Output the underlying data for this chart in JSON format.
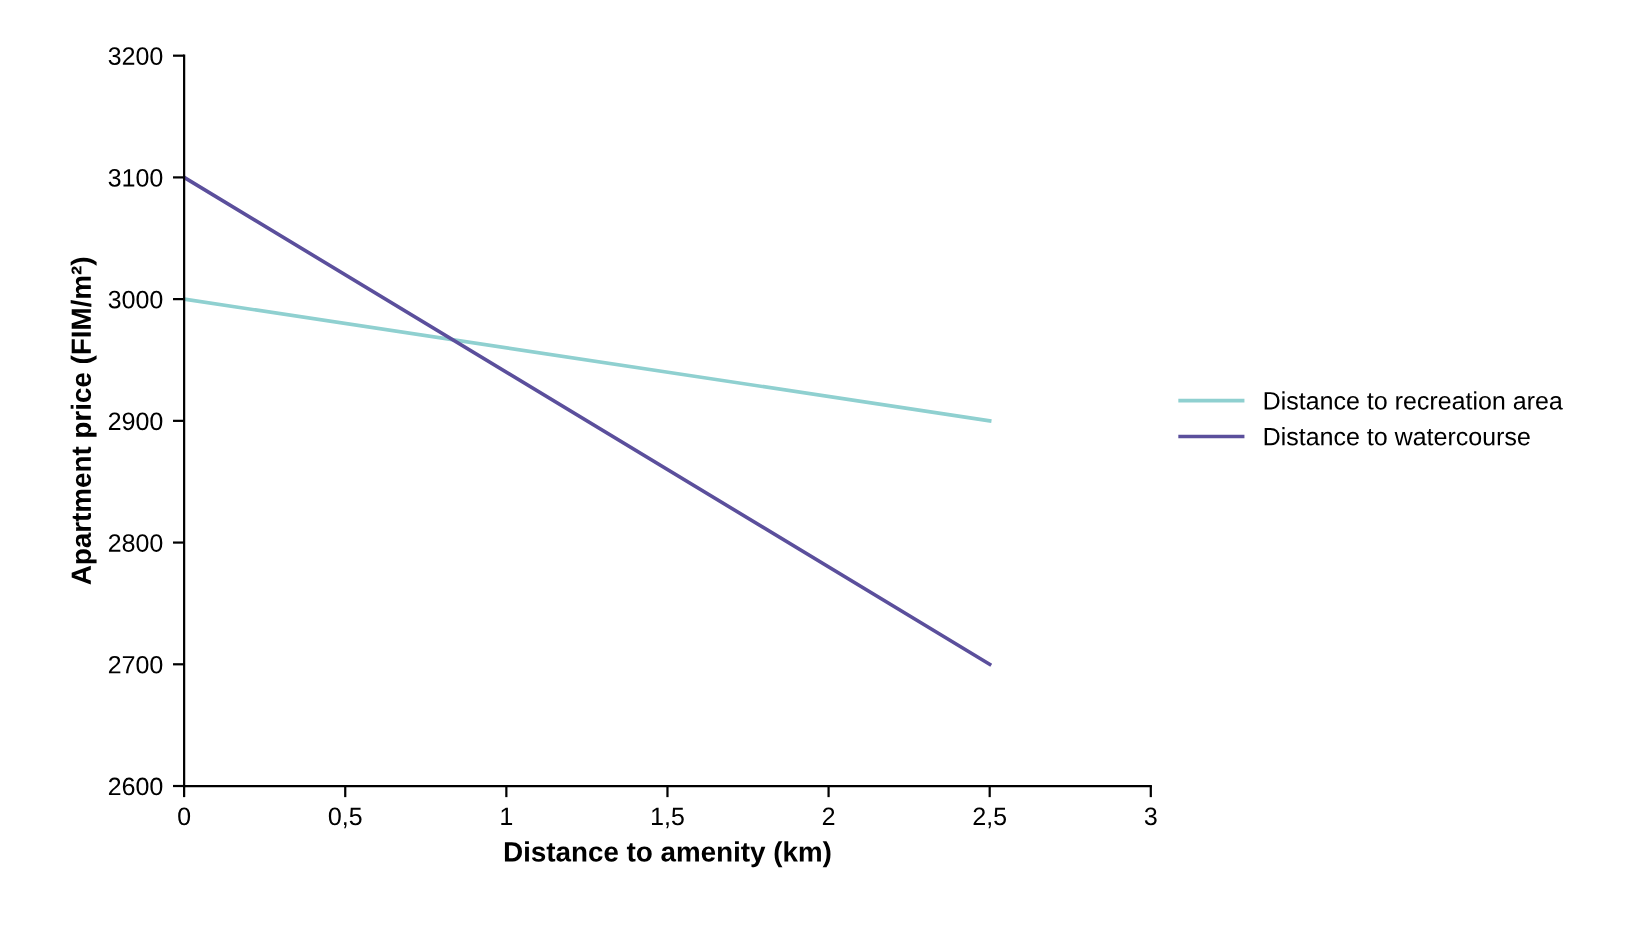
{
  "chart_data": {
    "type": "line",
    "xlabel": "Distance to amenity (km)",
    "ylabel": "Apartment price (FIM/m²)",
    "x": [
      0,
      2.5
    ],
    "series": [
      {
        "name": "Distance to recreation area",
        "color": "#8fd0d0",
        "values": [
          3000,
          2900
        ]
      },
      {
        "name": "Distance to watercourse",
        "color": "#5b4f9c",
        "values": [
          3100,
          2700
        ]
      }
    ],
    "xlim": [
      0,
      3
    ],
    "xticks": [
      0,
      {
        "value": 0.5,
        "label": "0,5"
      },
      1,
      {
        "value": 1.5,
        "label": "1,5"
      },
      2,
      {
        "value": 2.5,
        "label": "2,5"
      },
      3
    ],
    "ylim": [
      2600,
      3200
    ],
    "yticks": [
      2600,
      2700,
      2800,
      2900,
      3000,
      3100,
      3200
    ],
    "grid": false,
    "legend": "right",
    "marker": "none",
    "line_style": "solid"
  }
}
